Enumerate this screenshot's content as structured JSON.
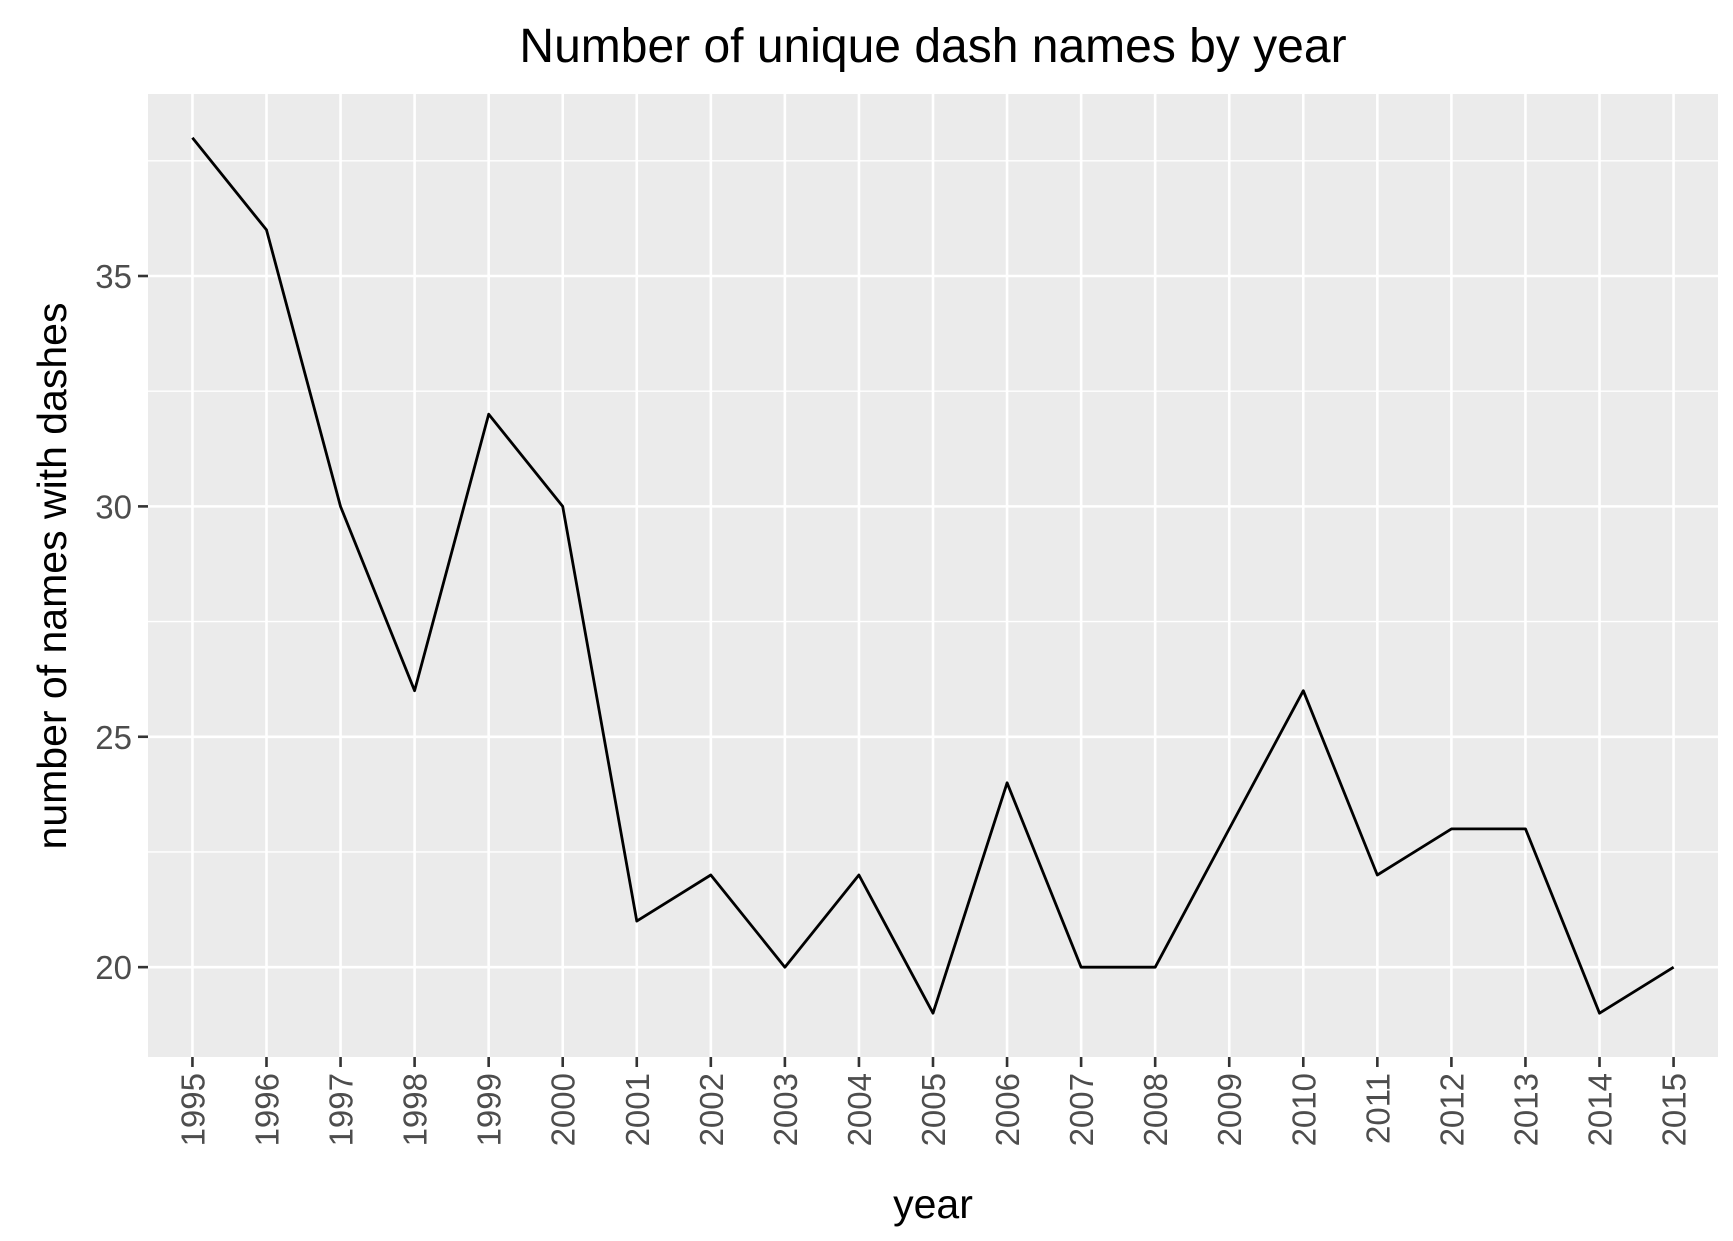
{
  "chart_data": {
    "type": "line",
    "title": "Number of unique dash names by year",
    "xlabel": "year",
    "ylabel": "number of names with dashes",
    "x": [
      1995,
      1996,
      1997,
      1998,
      1999,
      2000,
      2001,
      2002,
      2003,
      2004,
      2005,
      2006,
      2007,
      2008,
      2009,
      2010,
      2011,
      2012,
      2013,
      2014,
      2015
    ],
    "x_tick_labels": [
      "1995",
      "1996",
      "1997",
      "1998",
      "1999",
      "2000",
      "2001",
      "2002",
      "2003",
      "2004",
      "2005",
      "2006",
      "2007",
      "2008",
      "2009",
      "2010",
      "2011",
      "2012",
      "2013",
      "2014",
      "2015"
    ],
    "series": [
      {
        "values": [
          38,
          36,
          30,
          26,
          32,
          30,
          21,
          22,
          20,
          22,
          19,
          24,
          20,
          20,
          23,
          26,
          22,
          23,
          23,
          19,
          20
        ]
      }
    ],
    "y_ticks": [
      20,
      25,
      30,
      35
    ],
    "y_tick_labels": [
      "20",
      "25",
      "30",
      "35"
    ],
    "ylim": [
      18.05,
      38.95
    ],
    "xlim": [
      1994.4,
      2015.6
    ],
    "grid": true,
    "background": "#ebebeb",
    "grid_color": "#ffffff",
    "line_color": "#000000"
  }
}
